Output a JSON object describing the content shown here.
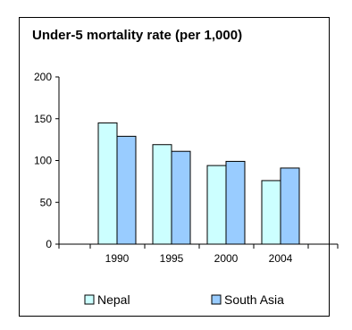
{
  "chart_data": {
    "type": "bar",
    "title": "Under-5 mortality rate (per 1,000)",
    "categories": [
      "1990",
      "1995",
      "2000",
      "2004"
    ],
    "series": [
      {
        "name": "Nepal",
        "values": [
          145,
          119,
          94,
          76
        ],
        "color": "#ccffff"
      },
      {
        "name": "South Asia",
        "values": [
          129,
          111,
          99,
          91
        ],
        "color": "#99ccff"
      }
    ],
    "ylim": [
      0,
      200
    ],
    "yticks": [
      "0",
      "50",
      "100",
      "150",
      "200"
    ],
    "grid": false,
    "legend_position": "bottom"
  }
}
